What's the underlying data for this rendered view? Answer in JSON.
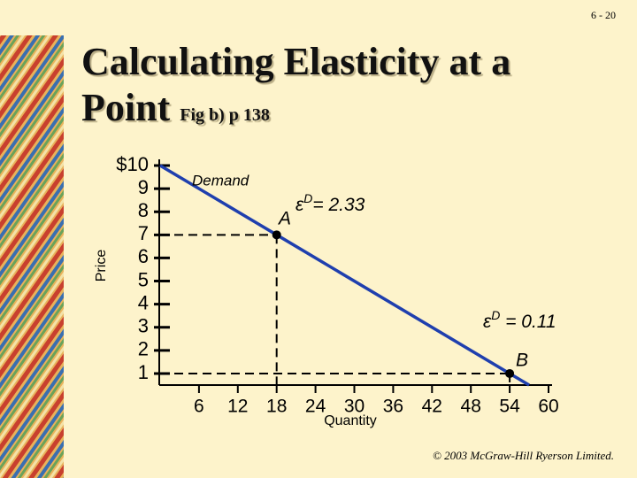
{
  "page_number": "6 - 20",
  "footer": "© 2003 McGraw-Hill Ryerson Limited.",
  "chart_data": {
    "type": "line",
    "title": "Calculating Elasticity at a Point",
    "subtitle": "Fig b) p 138",
    "xlabel": "Quantity",
    "ylabel": "Price",
    "xlim": [
      0,
      60
    ],
    "ylim": [
      0.5,
      10
    ],
    "xticks": [
      6,
      12,
      18,
      24,
      30,
      36,
      42,
      48,
      54,
      60
    ],
    "yticks": [
      {
        "value": 10,
        "label": "$10"
      },
      9,
      8,
      7,
      6,
      5,
      4,
      3,
      2,
      1
    ],
    "series": [
      {
        "name": "Demand",
        "color": "#1f3fae",
        "x": [
          0,
          18,
          54,
          57
        ],
        "values": [
          10,
          7,
          1,
          0.5
        ]
      }
    ],
    "points": [
      {
        "label": "A",
        "x": 18,
        "y": 7,
        "symbol": "ε",
        "sup": "D",
        "text": "= 2.33"
      },
      {
        "label": "B",
        "x": 54,
        "y": 1,
        "symbol": "ε",
        "sup": "D",
        "text": " = 0.11"
      }
    ]
  }
}
